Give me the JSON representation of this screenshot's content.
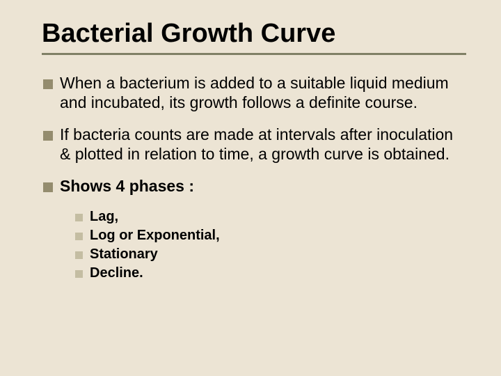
{
  "colors": {
    "background": "#ece4d4",
    "title_color": "#000000",
    "underline_color": "#808066",
    "bullet_l1_color": "#948c6e",
    "bullet_l2_color": "#c4bda2",
    "text_color": "#000000"
  },
  "typography": {
    "title_fontsize_pt": 38,
    "body_fontsize_pt": 23,
    "sub_fontsize_pt": 20,
    "font_family": "Comic Sans MS"
  },
  "title": "Bacterial Growth Curve",
  "bullets": {
    "b0": "When a bacterium is added to a suitable liquid medium and incubated, its growth follows a definite course.",
    "b1": "If bacteria counts are made at intervals after inoculation & plotted in relation to time, a growth curve is obtained.",
    "b2": "Shows 4 phases :",
    "sub0": "Lag,",
    "sub1": "Log or Exponential,",
    "sub2": "Stationary",
    "sub3": "Decline."
  }
}
